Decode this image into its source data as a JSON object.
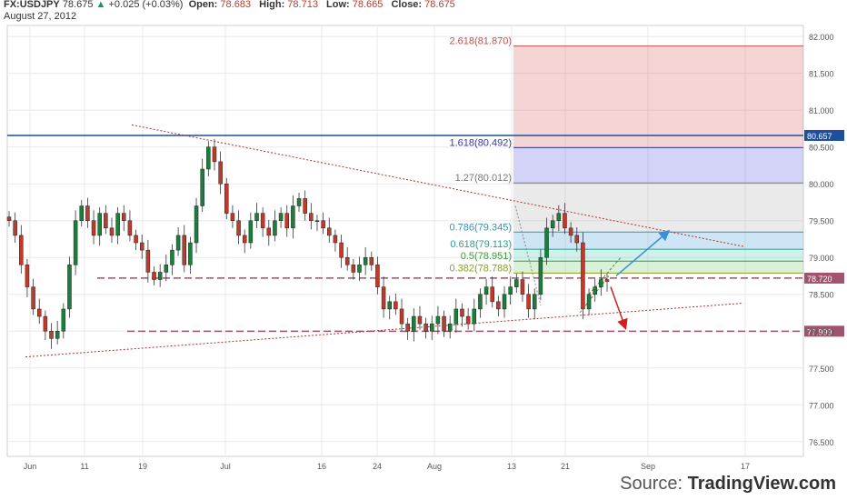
{
  "header": {
    "symbol": "FX:USDJPY",
    "last": "78.675",
    "change": "+0.025 (+0.03%)",
    "open_label": "Open:",
    "open": "78.683",
    "high_label": "High:",
    "high": "78.713",
    "low_label": "Low:",
    "low": "78.665",
    "close_label": "Close:",
    "close": "78.675",
    "date": "August 27, 2012"
  },
  "source": {
    "prefix": "Source:",
    "brand": "TradingView.com"
  },
  "colors": {
    "up": "#1a7f3a",
    "down": "#c0392b",
    "grid": "#e8e8e8",
    "hline": "#1f4e9c",
    "dashed": "#a0526e",
    "trend": "#b03030"
  },
  "chart_data": {
    "type": "candlestick",
    "ylim": [
      76.3,
      82.15
    ],
    "y_ticks": [
      "76.500",
      "77.000",
      "77.500",
      "78.000",
      "78.500",
      "79.000",
      "79.500",
      "80.000",
      "80.500",
      "81.000",
      "81.500",
      "82.000"
    ],
    "x_ticks": [
      "Jun",
      "11",
      "19",
      "Jul",
      "16",
      "24",
      "Aug",
      "13",
      "21",
      "Sep",
      "17"
    ],
    "close_series": [
      79.5,
      79.3,
      78.9,
      78.6,
      78.3,
      78.2,
      78.0,
      77.9,
      78.0,
      78.3,
      78.9,
      79.5,
      79.7,
      79.5,
      79.3,
      79.6,
      79.4,
      79.3,
      79.6,
      79.5,
      79.3,
      79.2,
      79.1,
      78.8,
      78.7,
      78.8,
      78.9,
      79.1,
      79.3,
      78.9,
      79.2,
      79.7,
      80.2,
      80.5,
      80.3,
      80.0,
      79.6,
      79.5,
      79.3,
      79.2,
      79.5,
      79.6,
      79.4,
      79.3,
      79.5,
      79.6,
      79.4,
      79.7,
      79.8,
      79.6,
      79.5,
      79.5,
      79.4,
      79.3,
      79.2,
      79.0,
      78.9,
      78.8,
      78.9,
      79.0,
      78.9,
      78.6,
      78.3,
      78.4,
      78.3,
      78.1,
      78.0,
      78.2,
      78.1,
      78.0,
      78.1,
      78.2,
      78.0,
      78.1,
      78.3,
      78.2,
      78.1,
      78.3,
      78.5,
      78.6,
      78.4,
      78.3,
      78.5,
      78.6,
      78.7,
      78.5,
      78.3,
      78.5,
      79.0,
      79.4,
      79.5,
      79.6,
      79.4,
      79.3,
      79.2,
      78.3,
      78.5,
      78.6,
      78.7,
      78.675
    ],
    "horizontal_levels": [
      {
        "value": 80.657,
        "label": "80.657",
        "style": "solid"
      },
      {
        "value": 78.72,
        "label": "78.720",
        "style": "dashed"
      },
      {
        "value": 77.999,
        "label": "77.999",
        "style": "dashed"
      }
    ],
    "fib_levels": [
      {
        "ratio": "2.618",
        "value": 81.87,
        "label": "2.618(81.870)",
        "color": "#c0504d"
      },
      {
        "ratio": "1.618",
        "value": 80.492,
        "label": "1.618(80.492)",
        "color": "#3a3aa0"
      },
      {
        "ratio": "1.27",
        "value": 80.012,
        "label": "1.27(80.012)",
        "color": "#777777"
      },
      {
        "ratio": "0.786",
        "value": 79.345,
        "label": "0.786(79.345)",
        "color": "#3a8fb5"
      },
      {
        "ratio": "0.618",
        "value": 79.113,
        "label": "0.618(79.113)",
        "color": "#2aa08a"
      },
      {
        "ratio": "0.5",
        "value": 78.951,
        "label": "0.5(78.951)",
        "color": "#3a9a3a"
      },
      {
        "ratio": "0.382",
        "value": 78.788,
        "label": "0.382(78.788)",
        "color": "#8aa020"
      }
    ]
  }
}
